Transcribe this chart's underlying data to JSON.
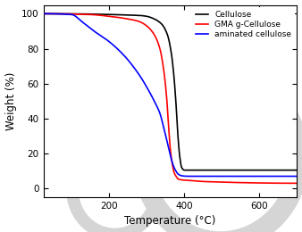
{
  "title": "",
  "xlabel": "Temperature (°C)",
  "ylabel": "Weight (%)",
  "xlim": [
    25,
    700
  ],
  "ylim": [
    -5,
    105
  ],
  "xticks": [
    200,
    400,
    600
  ],
  "yticks": [
    0,
    20,
    40,
    60,
    80,
    100
  ],
  "legend": [
    "Cellulose",
    "GMA g-Cellulose",
    "aminated cellulose"
  ],
  "colors": [
    "black",
    "red",
    "blue"
  ],
  "background_color": "#ffffff",
  "cellulose": {
    "points": [
      [
        25,
        100
      ],
      [
        280,
        99
      ],
      [
        300,
        98.5
      ],
      [
        320,
        97
      ],
      [
        340,
        94
      ],
      [
        355,
        88
      ],
      [
        365,
        78
      ],
      [
        372,
        65
      ],
      [
        378,
        48
      ],
      [
        383,
        30
      ],
      [
        388,
        18
      ],
      [
        393,
        12
      ],
      [
        400,
        10.5
      ],
      [
        700,
        10.5
      ]
    ]
  },
  "gma": {
    "points": [
      [
        25,
        100
      ],
      [
        150,
        99.5
      ],
      [
        200,
        98.5
      ],
      [
        250,
        97
      ],
      [
        280,
        95.5
      ],
      [
        300,
        93
      ],
      [
        320,
        88
      ],
      [
        335,
        80
      ],
      [
        345,
        68
      ],
      [
        353,
        52
      ],
      [
        358,
        36
      ],
      [
        363,
        22
      ],
      [
        368,
        14
      ],
      [
        373,
        9
      ],
      [
        378,
        7
      ],
      [
        383,
        5.5
      ],
      [
        390,
        5
      ],
      [
        420,
        4.5
      ],
      [
        450,
        4
      ],
      [
        700,
        3
      ]
    ]
  },
  "aminated": {
    "points": [
      [
        25,
        100
      ],
      [
        100,
        99.5
      ],
      [
        130,
        95
      ],
      [
        160,
        90
      ],
      [
        200,
        84
      ],
      [
        240,
        76
      ],
      [
        280,
        65
      ],
      [
        300,
        58
      ],
      [
        320,
        50
      ],
      [
        335,
        43
      ],
      [
        345,
        35
      ],
      [
        355,
        26
      ],
      [
        365,
        17
      ],
      [
        375,
        11
      ],
      [
        385,
        8
      ],
      [
        395,
        7.2
      ],
      [
        410,
        7
      ],
      [
        450,
        7
      ],
      [
        700,
        7
      ]
    ]
  }
}
